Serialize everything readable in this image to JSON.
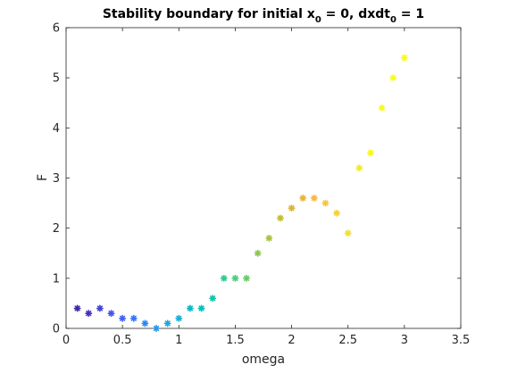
{
  "chart_data": {
    "type": "scatter",
    "title": {
      "prefix": "Stability boundary for initial x",
      "sub1": "0",
      "middle": " = 0, dxdt",
      "sub2": "0",
      "suffix": " = 1"
    },
    "xlabel": "omega",
    "ylabel": "F",
    "xlim": [
      0,
      3.5
    ],
    "ylim": [
      0,
      6
    ],
    "xticks": [
      0,
      0.5,
      1,
      1.5,
      2,
      2.5,
      3,
      3.5
    ],
    "xtick_labels": [
      "0",
      "0.5",
      "1",
      "1.5",
      "2",
      "2.5",
      "3",
      "3.5"
    ],
    "yticks": [
      0,
      1,
      2,
      3,
      4,
      5,
      6
    ],
    "ytick_labels": [
      "0",
      "1",
      "2",
      "3",
      "4",
      "5",
      "6"
    ],
    "grid": false,
    "marker": "asterisk",
    "colormap": "parula",
    "x": [
      0.1,
      0.2,
      0.3,
      0.4,
      0.5,
      0.6,
      0.7,
      0.8,
      0.9,
      1.0,
      1.1,
      1.2,
      1.3,
      1.4,
      1.5,
      1.6,
      1.7,
      1.8,
      1.9,
      2.0,
      2.1,
      2.2,
      2.3,
      2.4,
      2.5,
      2.6,
      2.7,
      2.8,
      2.9,
      3.0
    ],
    "y": [
      0.4,
      0.3,
      0.4,
      0.3,
      0.2,
      0.2,
      0.1,
      0.0,
      0.1,
      0.2,
      0.4,
      0.4,
      0.6,
      1.0,
      1.0,
      1.0,
      1.5,
      1.8,
      2.2,
      2.4,
      2.6,
      2.6,
      2.5,
      2.3,
      1.9,
      3.2,
      3.5,
      4.4,
      5.0,
      5.4
    ],
    "colors": [
      "#3e26a8",
      "#4230c3",
      "#4440d9",
      "#4452ea",
      "#3f63f5",
      "#3476fb",
      "#2888f9",
      "#2797ed",
      "#1fa6e2",
      "#18b0d8",
      "#08b9c7",
      "#00bfba",
      "#10c5a9",
      "#30ca95",
      "#4ccd7e",
      "#6bcc65",
      "#8cc84f",
      "#aac33c",
      "#c4bd32",
      "#dab631",
      "#ebb33a",
      "#f9b741",
      "#fac43a",
      "#f6d12f",
      "#f3e02a",
      "#f4ec1f",
      "#f9f815",
      "#fcfc14",
      "#fcfd16",
      "#f9fb15"
    ]
  }
}
